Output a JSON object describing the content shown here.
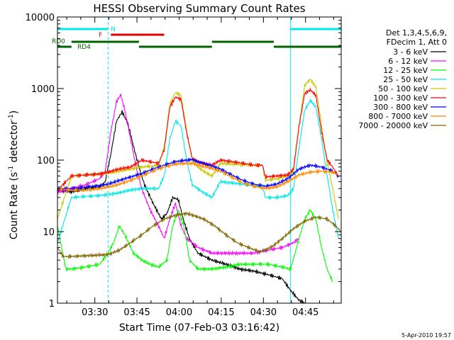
{
  "chart_data": {
    "type": "line",
    "title": "HESSI Observing Summary Count Rates",
    "xlabel": "Start Time (07-Feb-03 03:16:42)",
    "ylabel_parts": [
      "Count Rate (s",
      "-1",
      " detector",
      "-1",
      ")"
    ],
    "y_scale": "log",
    "ylim": [
      1,
      10000
    ],
    "xlim_minutes": [
      0,
      101
    ],
    "x_ticks": [
      {
        "label": "03:30",
        "t": 13.3
      },
      {
        "label": "03:45",
        "t": 28.3
      },
      {
        "label": "04:00",
        "t": 43.3
      },
      {
        "label": "04:15",
        "t": 58.3
      },
      {
        "label": "04:30",
        "t": 73.3
      },
      {
        "label": "04:45",
        "t": 88.3
      }
    ],
    "y_ticks": [
      {
        "label": "1",
        "v": 1
      },
      {
        "label": "10",
        "v": 10
      },
      {
        "label": "100",
        "v": 100
      },
      {
        "label": "1000",
        "v": 1000
      },
      {
        "label": "10000",
        "v": 10000
      }
    ],
    "legend_header": [
      "Det 1,3,4,5,6,9,",
      "FDecim 1, Att 0"
    ],
    "legend_placement": "right",
    "date_stamp": "5-Apr-2010 19:57",
    "flags": [
      {
        "label": "N",
        "color": "#00e8e8",
        "segments": [
          [
            0,
            18
          ],
          [
            83,
            101
          ]
        ]
      },
      {
        "label": "F",
        "color": "#e00000",
        "segments": [
          [
            19,
            38
          ]
        ]
      },
      {
        "label": "RD0",
        "color": "#006400",
        "segments": [
          [
            5,
            29
          ],
          [
            55,
            77
          ]
        ]
      },
      {
        "label": "RD4",
        "color": "#006400",
        "segments": [
          [
            0,
            5
          ],
          [
            29,
            55
          ],
          [
            77,
            101
          ]
        ]
      }
    ],
    "night_boundaries_minutes": [
      0,
      18,
      83,
      101
    ],
    "series": [
      {
        "name": "3 - 6 keV",
        "color": "#000000",
        "points": [
          [
            0,
            38
          ],
          [
            5,
            36
          ],
          [
            10,
            40
          ],
          [
            15,
            42
          ],
          [
            17,
            50
          ],
          [
            19,
            120
          ],
          [
            21,
            350
          ],
          [
            23,
            470
          ],
          [
            25,
            330
          ],
          [
            27,
            160
          ],
          [
            29,
            80
          ],
          [
            31,
            45
          ],
          [
            34,
            25
          ],
          [
            37,
            15
          ],
          [
            39,
            18
          ],
          [
            41,
            30
          ],
          [
            43,
            28
          ],
          [
            45,
            14
          ],
          [
            47,
            8
          ],
          [
            50,
            5
          ],
          [
            55,
            4
          ],
          [
            60,
            3.5
          ],
          [
            65,
            3
          ],
          [
            70,
            2.8
          ],
          [
            75,
            2.5
          ],
          [
            80,
            2.2
          ],
          [
            83,
            1.5
          ],
          [
            86,
            1.1
          ],
          [
            88,
            1
          ]
        ]
      },
      {
        "name": "6 - 12 keV",
        "color": "#ff00ff",
        "points": [
          [
            0,
            36
          ],
          [
            5,
            40
          ],
          [
            10,
            45
          ],
          [
            15,
            55
          ],
          [
            17,
            70
          ],
          [
            19,
            250
          ],
          [
            21,
            650
          ],
          [
            22.5,
            820
          ],
          [
            24,
            500
          ],
          [
            26,
            200
          ],
          [
            28,
            80
          ],
          [
            30,
            40
          ],
          [
            33,
            20
          ],
          [
            36,
            12
          ],
          [
            38,
            8
          ],
          [
            40,
            15
          ],
          [
            42,
            25
          ],
          [
            44,
            12
          ],
          [
            46,
            8
          ],
          [
            50,
            6
          ],
          [
            55,
            5
          ],
          [
            60,
            5
          ],
          [
            65,
            5
          ],
          [
            70,
            5
          ],
          [
            75,
            5.5
          ],
          [
            80,
            6
          ],
          [
            84,
            7
          ],
          [
            86,
            8
          ]
        ]
      },
      {
        "name": "12 - 25 keV",
        "color": "#00ff00",
        "points": [
          [
            0,
            12
          ],
          [
            3,
            3
          ],
          [
            5,
            3
          ],
          [
            10,
            3.2
          ],
          [
            15,
            3.5
          ],
          [
            18,
            5
          ],
          [
            20,
            7
          ],
          [
            22,
            12
          ],
          [
            24,
            9
          ],
          [
            27,
            5
          ],
          [
            30,
            4
          ],
          [
            33,
            3.5
          ],
          [
            36,
            3.2
          ],
          [
            39,
            4
          ],
          [
            41,
            12
          ],
          [
            43,
            20
          ],
          [
            45,
            12
          ],
          [
            47,
            4
          ],
          [
            50,
            3
          ],
          [
            55,
            3
          ],
          [
            60,
            3.2
          ],
          [
            65,
            3.5
          ],
          [
            70,
            3.5
          ],
          [
            75,
            3.5
          ],
          [
            80,
            3.2
          ],
          [
            83,
            3
          ],
          [
            86,
            8
          ],
          [
            88,
            15
          ],
          [
            90,
            20
          ],
          [
            92,
            15
          ],
          [
            94,
            6
          ],
          [
            96,
            3
          ],
          [
            98,
            2
          ]
        ]
      },
      {
        "name": "25 - 50 keV",
        "color": "#00e8e8",
        "points": [
          [
            0,
            7
          ],
          [
            5,
            30
          ],
          [
            10,
            31
          ],
          [
            15,
            32
          ],
          [
            18,
            33
          ],
          [
            22,
            35
          ],
          [
            26,
            38
          ],
          [
            30,
            40
          ],
          [
            33,
            40
          ],
          [
            36,
            40
          ],
          [
            38,
            60
          ],
          [
            40,
            200
          ],
          [
            42,
            350
          ],
          [
            44,
            300
          ],
          [
            46,
            100
          ],
          [
            48,
            45
          ],
          [
            52,
            35
          ],
          [
            55,
            30
          ],
          [
            58,
            50
          ],
          [
            62,
            48
          ],
          [
            66,
            46
          ],
          [
            70,
            44
          ],
          [
            73,
            43
          ],
          [
            74,
            30
          ],
          [
            78,
            30
          ],
          [
            82,
            32
          ],
          [
            84,
            40
          ],
          [
            86,
            150
          ],
          [
            88,
            500
          ],
          [
            90,
            680
          ],
          [
            92,
            550
          ],
          [
            94,
            200
          ],
          [
            96,
            60
          ],
          [
            98,
            20
          ],
          [
            100,
            8
          ]
        ]
      },
      {
        "name": "50 - 100 keV",
        "color": "#c8c800",
        "points": [
          [
            0,
            15
          ],
          [
            5,
            60
          ],
          [
            10,
            62
          ],
          [
            15,
            64
          ],
          [
            18,
            66
          ],
          [
            22,
            70
          ],
          [
            26,
            75
          ],
          [
            30,
            80
          ],
          [
            33,
            82
          ],
          [
            36,
            85
          ],
          [
            38,
            150
          ],
          [
            40,
            600
          ],
          [
            42,
            880
          ],
          [
            44,
            800
          ],
          [
            46,
            250
          ],
          [
            48,
            100
          ],
          [
            50,
            80
          ],
          [
            52,
            70
          ],
          [
            55,
            60
          ],
          [
            58,
            90
          ],
          [
            62,
            88
          ],
          [
            66,
            86
          ],
          [
            70,
            85
          ],
          [
            73,
            84
          ],
          [
            74,
            52
          ],
          [
            78,
            55
          ],
          [
            82,
            60
          ],
          [
            84,
            70
          ],
          [
            86,
            300
          ],
          [
            88,
            1100
          ],
          [
            90,
            1350
          ],
          [
            92,
            1050
          ],
          [
            94,
            300
          ],
          [
            96,
            90
          ],
          [
            98,
            40
          ],
          [
            100,
            15
          ]
        ]
      },
      {
        "name": "100 - 300 keV",
        "color": "#ff0000",
        "points": [
          [
            0,
            38
          ],
          [
            5,
            60
          ],
          [
            10,
            62
          ],
          [
            15,
            64
          ],
          [
            18,
            68
          ],
          [
            22,
            75
          ],
          [
            26,
            80
          ],
          [
            30,
            100
          ],
          [
            33,
            95
          ],
          [
            36,
            90
          ],
          [
            38,
            140
          ],
          [
            40,
            550
          ],
          [
            42,
            760
          ],
          [
            44,
            700
          ],
          [
            46,
            240
          ],
          [
            48,
            105
          ],
          [
            50,
            95
          ],
          [
            52,
            90
          ],
          [
            55,
            85
          ],
          [
            58,
            100
          ],
          [
            62,
            95
          ],
          [
            66,
            90
          ],
          [
            70,
            85
          ],
          [
            73,
            85
          ],
          [
            74,
            58
          ],
          [
            78,
            60
          ],
          [
            82,
            62
          ],
          [
            84,
            75
          ],
          [
            86,
            300
          ],
          [
            88,
            850
          ],
          [
            90,
            960
          ],
          [
            92,
            800
          ],
          [
            94,
            250
          ],
          [
            96,
            100
          ],
          [
            98,
            80
          ],
          [
            100,
            58
          ]
        ]
      },
      {
        "name": "300 - 800 keV",
        "color": "#0000ff",
        "points": [
          [
            0,
            40
          ],
          [
            5,
            40
          ],
          [
            10,
            42
          ],
          [
            15,
            44
          ],
          [
            18,
            46
          ],
          [
            22,
            52
          ],
          [
            26,
            58
          ],
          [
            30,
            65
          ],
          [
            34,
            75
          ],
          [
            38,
            85
          ],
          [
            42,
            95
          ],
          [
            46,
            100
          ],
          [
            48,
            102
          ],
          [
            50,
            95
          ],
          [
            54,
            85
          ],
          [
            58,
            75
          ],
          [
            62,
            62
          ],
          [
            66,
            52
          ],
          [
            70,
            46
          ],
          [
            74,
            43
          ],
          [
            78,
            46
          ],
          [
            82,
            55
          ],
          [
            86,
            75
          ],
          [
            90,
            85
          ],
          [
            94,
            80
          ],
          [
            98,
            70
          ],
          [
            100,
            60
          ]
        ]
      },
      {
        "name": "800 - 7000 keV",
        "color": "#ff8800",
        "points": [
          [
            0,
            40
          ],
          [
            5,
            38
          ],
          [
            10,
            38
          ],
          [
            15,
            40
          ],
          [
            18,
            42
          ],
          [
            22,
            46
          ],
          [
            26,
            52
          ],
          [
            30,
            60
          ],
          [
            34,
            70
          ],
          [
            38,
            80
          ],
          [
            42,
            88
          ],
          [
            46,
            90
          ],
          [
            48,
            90
          ],
          [
            50,
            85
          ],
          [
            54,
            78
          ],
          [
            58,
            70
          ],
          [
            62,
            58
          ],
          [
            66,
            48
          ],
          [
            70,
            43
          ],
          [
            74,
            40
          ],
          [
            78,
            42
          ],
          [
            82,
            50
          ],
          [
            86,
            62
          ],
          [
            90,
            68
          ],
          [
            94,
            70
          ],
          [
            98,
            68
          ],
          [
            100,
            62
          ]
        ]
      },
      {
        "name": "7000 - 20000 keV",
        "color": "#806600",
        "points": [
          [
            0,
            6
          ],
          [
            2,
            4.5
          ],
          [
            5,
            4.5
          ],
          [
            10,
            4.6
          ],
          [
            15,
            4.7
          ],
          [
            18,
            4.8
          ],
          [
            22,
            5.5
          ],
          [
            26,
            7
          ],
          [
            30,
            9
          ],
          [
            34,
            12
          ],
          [
            38,
            15
          ],
          [
            42,
            17
          ],
          [
            46,
            18
          ],
          [
            48,
            17
          ],
          [
            52,
            15
          ],
          [
            56,
            12
          ],
          [
            60,
            9
          ],
          [
            64,
            7
          ],
          [
            68,
            6
          ],
          [
            72,
            5.2
          ],
          [
            76,
            6
          ],
          [
            80,
            8
          ],
          [
            84,
            11
          ],
          [
            88,
            14
          ],
          [
            92,
            16
          ],
          [
            96,
            15
          ],
          [
            99,
            12
          ],
          [
            101,
            10
          ]
        ]
      }
    ]
  }
}
